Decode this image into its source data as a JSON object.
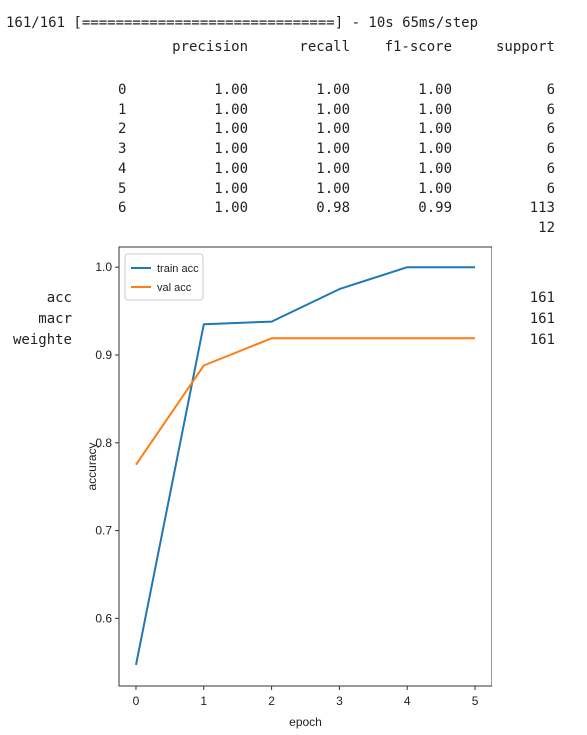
{
  "console": {
    "progress_line": "161/161 [==============================] - 10s 65ms/step",
    "headers": [
      "precision",
      "recall",
      "f1-score",
      "support"
    ],
    "rows": [
      {
        "label": "0",
        "precision": "1.00",
        "recall": "1.00",
        "f1": "1.00",
        "support": "6"
      },
      {
        "label": "1",
        "precision": "1.00",
        "recall": "1.00",
        "f1": "1.00",
        "support": "6"
      },
      {
        "label": "2",
        "precision": "1.00",
        "recall": "1.00",
        "f1": "1.00",
        "support": "6"
      },
      {
        "label": "3",
        "precision": "1.00",
        "recall": "1.00",
        "f1": "1.00",
        "support": "6"
      },
      {
        "label": "4",
        "precision": "1.00",
        "recall": "1.00",
        "f1": "1.00",
        "support": "6"
      },
      {
        "label": "5",
        "precision": "1.00",
        "recall": "1.00",
        "f1": "1.00",
        "support": "6"
      },
      {
        "label": "6",
        "precision": "1.00",
        "recall": "0.98",
        "f1": "0.99",
        "support": "113"
      },
      {
        "label": "",
        "precision": "",
        "recall": "",
        "f1": "",
        "support": "12"
      }
    ],
    "summary": [
      {
        "label": "acc",
        "support": "161"
      },
      {
        "label": "macr",
        "support": "161"
      },
      {
        "label": "weighte",
        "support": "161"
      }
    ]
  },
  "chart_data": {
    "type": "line",
    "xlabel": "epoch",
    "ylabel": "accuracy",
    "x": [
      0,
      1,
      2,
      3,
      4,
      5
    ],
    "xlim": [
      -0.25,
      5.25
    ],
    "ylim": [
      0.523,
      1.023
    ],
    "xticks": [
      "0",
      "1",
      "2",
      "3",
      "4",
      "5"
    ],
    "yticks": [
      "0.6",
      "0.7",
      "0.8",
      "0.9",
      "1.0"
    ],
    "ytick_values": [
      0.6,
      0.7,
      0.8,
      0.9,
      1.0
    ],
    "legend_placement": "top-left",
    "grid": false,
    "series": [
      {
        "name": "train acc",
        "color": "#1f77b4",
        "values": [
          0.547,
          0.935,
          0.938,
          0.975,
          1.0,
          1.0
        ]
      },
      {
        "name": "val acc",
        "color": "#ff7f0e",
        "values": [
          0.775,
          0.888,
          0.919,
          0.919,
          0.919,
          0.919
        ]
      }
    ]
  }
}
